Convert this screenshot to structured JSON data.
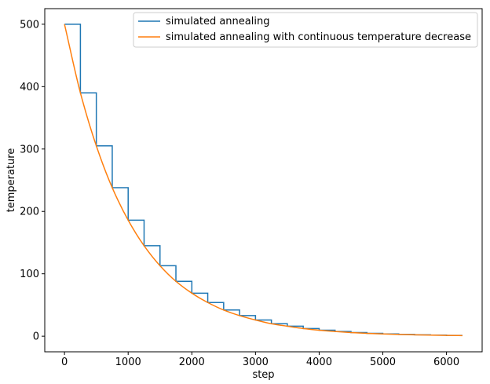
{
  "chart_data": {
    "type": "line",
    "xlabel": "step",
    "ylabel": "temperature",
    "xlim": [
      -310,
      6560
    ],
    "ylim": [
      -25,
      525
    ],
    "xticks": [
      0,
      1000,
      2000,
      3000,
      4000,
      5000,
      6000
    ],
    "yticks": [
      0,
      100,
      200,
      300,
      400,
      500
    ],
    "xtick_labels": [
      "0",
      "1000",
      "2000",
      "3000",
      "4000",
      "5000",
      "6000"
    ],
    "ytick_labels": [
      "0",
      "100",
      "200",
      "300",
      "400",
      "500"
    ],
    "grid": false,
    "legend_position": "top-right",
    "series": [
      {
        "name": "simulated annealing",
        "color": "#1f77b4",
        "style": "step",
        "x": [
          0,
          250,
          500,
          750,
          1000,
          1250,
          1500,
          1750,
          2000,
          2250,
          2500,
          2750,
          3000,
          3250,
          3500,
          3750,
          4000,
          4250,
          4500,
          4750,
          5000,
          5250,
          5500,
          5750,
          6000,
          6250
        ],
        "values": [
          500,
          390,
          305,
          238,
          186,
          145,
          113,
          88,
          69,
          54,
          42,
          33,
          26,
          20,
          16,
          12.3,
          9.6,
          7.5,
          5.9,
          4.6,
          3.6,
          2.8,
          2.2,
          1.7,
          1.3,
          1.3
        ]
      },
      {
        "name": "simulated annealing with continuous temperature decrease",
        "color": "#ff7f0e",
        "style": "smooth",
        "x": [
          0,
          250,
          500,
          750,
          1000,
          1250,
          1500,
          1750,
          2000,
          2250,
          2500,
          2750,
          3000,
          3250,
          3500,
          3750,
          4000,
          4250,
          4500,
          4750,
          5000,
          5250,
          5500,
          5750,
          6000,
          6250
        ],
        "values": [
          500,
          390,
          305,
          238,
          186,
          145,
          113,
          88,
          69,
          54,
          42,
          33,
          26,
          20,
          16,
          12.3,
          9.6,
          7.5,
          5.9,
          4.6,
          3.6,
          2.8,
          2.2,
          1.7,
          1.3,
          1.0
        ]
      }
    ]
  }
}
